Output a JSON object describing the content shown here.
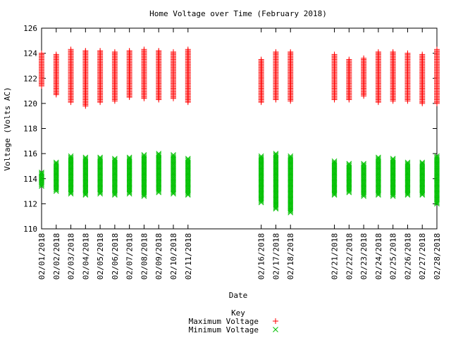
{
  "chart_data": {
    "type": "scatter",
    "title": "Home Voltage over Time (February 2018)",
    "xlabel": "Date",
    "ylabel": "Voltage (Volts AC)",
    "ylim": [
      110,
      126
    ],
    "yticks": [
      110,
      112,
      114,
      116,
      118,
      120,
      122,
      124,
      126
    ],
    "xdays": [
      1,
      28
    ],
    "grid": false,
    "legend_position": "bottom-center",
    "legend": {
      "title": "Key",
      "entries": [
        {
          "label": "Maximum Voltage",
          "color": "#ff0000",
          "marker": "+"
        },
        {
          "label": "Minimum Voltage",
          "color": "#00c000",
          "marker": "x"
        }
      ]
    },
    "dates": [
      {
        "label": "02/01/2018",
        "day": 1,
        "max": [
          121.4,
          124.0
        ],
        "min": [
          113.4,
          114.5
        ]
      },
      {
        "label": "02/02/2018",
        "day": 2,
        "max": [
          120.7,
          123.9
        ],
        "min": [
          113.0,
          115.3
        ]
      },
      {
        "label": "02/03/2018",
        "day": 3,
        "max": [
          120.1,
          124.3
        ],
        "min": [
          112.8,
          115.8
        ]
      },
      {
        "label": "02/04/2018",
        "day": 4,
        "max": [
          119.8,
          124.2
        ],
        "min": [
          112.7,
          115.7
        ]
      },
      {
        "label": "02/05/2018",
        "day": 5,
        "max": [
          120.1,
          124.2
        ],
        "min": [
          112.8,
          115.7
        ]
      },
      {
        "label": "02/06/2018",
        "day": 6,
        "max": [
          120.2,
          124.1
        ],
        "min": [
          112.7,
          115.6
        ]
      },
      {
        "label": "02/07/2018",
        "day": 7,
        "max": [
          120.5,
          124.2
        ],
        "min": [
          112.8,
          115.7
        ]
      },
      {
        "label": "02/08/2018",
        "day": 8,
        "max": [
          120.4,
          124.3
        ],
        "min": [
          112.6,
          115.9
        ]
      },
      {
        "label": "02/09/2018",
        "day": 9,
        "max": [
          120.3,
          124.2
        ],
        "min": [
          112.9,
          116.0
        ]
      },
      {
        "label": "02/10/2018",
        "day": 10,
        "max": [
          120.4,
          124.1
        ],
        "min": [
          112.8,
          115.9
        ]
      },
      {
        "label": "02/11/2018",
        "day": 11,
        "max": [
          120.1,
          124.3
        ],
        "min": [
          112.7,
          115.6
        ]
      },
      {
        "label": "02/16/2018",
        "day": 16,
        "max": [
          120.1,
          123.5
        ],
        "min": [
          112.1,
          115.8
        ]
      },
      {
        "label": "02/17/2018",
        "day": 17,
        "max": [
          120.3,
          124.1
        ],
        "min": [
          111.6,
          116.0
        ]
      },
      {
        "label": "02/18/2018",
        "day": 18,
        "max": [
          120.2,
          124.1
        ],
        "min": [
          111.3,
          115.8
        ]
      },
      {
        "label": "02/21/2018",
        "day": 21,
        "max": [
          120.3,
          123.9
        ],
        "min": [
          112.7,
          115.4
        ]
      },
      {
        "label": "02/22/2018",
        "day": 22,
        "max": [
          120.3,
          123.5
        ],
        "min": [
          112.9,
          115.2
        ]
      },
      {
        "label": "02/23/2018",
        "day": 23,
        "max": [
          120.6,
          123.6
        ],
        "min": [
          112.6,
          115.2
        ]
      },
      {
        "label": "02/24/2018",
        "day": 24,
        "max": [
          120.1,
          124.1
        ],
        "min": [
          112.7,
          115.7
        ]
      },
      {
        "label": "02/25/2018",
        "day": 25,
        "max": [
          120.2,
          124.1
        ],
        "min": [
          112.6,
          115.6
        ]
      },
      {
        "label": "02/26/2018",
        "day": 26,
        "max": [
          120.2,
          124.0
        ],
        "min": [
          112.7,
          115.3
        ]
      },
      {
        "label": "02/27/2018",
        "day": 27,
        "max": [
          120.0,
          123.9
        ],
        "min": [
          112.7,
          115.3
        ]
      },
      {
        "label": "02/28/2018",
        "day": 28,
        "max": [
          120.0,
          124.3
        ],
        "min": [
          112.0,
          115.8
        ]
      }
    ]
  }
}
